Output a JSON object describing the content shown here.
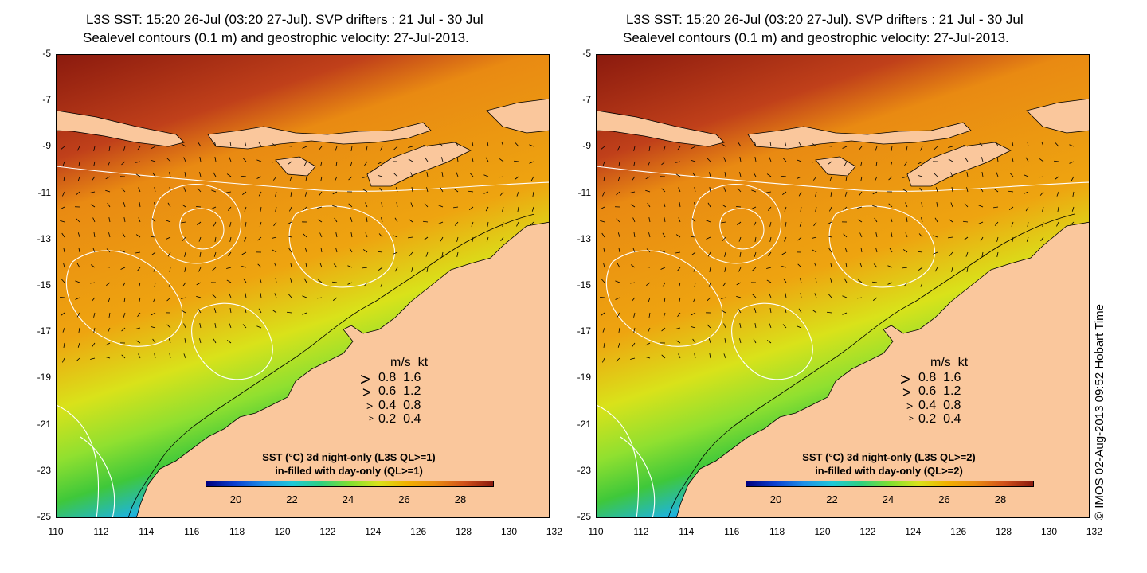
{
  "panels": [
    {
      "title_line1": "L3S SST: 15:20 26-Jul (03:20 27-Jul). SVP drifters : 21 Jul - 30 Jul",
      "title_line2": "Sealevel contours (0.1 m) and geostrophic velocity: 27-Jul-2013.",
      "legend_header": "m/s  kt",
      "legend_rows": [
        "0.8  1.6",
        "0.6  1.2",
        "0.4  0.8",
        "0.2  0.4"
      ],
      "colorbar_caption1": "SST (°C)  3d night-only (L3S QL>=1)",
      "colorbar_caption2": "in-filled with day-only (QL>=1)",
      "colorbar_ticks": [
        "20",
        "22",
        "24",
        "26",
        "28"
      ]
    },
    {
      "title_line1": "L3S SST: 15:20 26-Jul (03:20 27-Jul). SVP drifters : 21 Jul - 30 Jul",
      "title_line2": "Sealevel contours (0.1 m) and geostrophic velocity: 27-Jul-2013.",
      "legend_header": "m/s  kt",
      "legend_rows": [
        "0.8  1.6",
        "0.6  1.2",
        "0.4  0.8",
        "0.2  0.4"
      ],
      "colorbar_caption1": "SST (°C)  3d night-only (L3S QL>=2)",
      "colorbar_caption2": "in-filled with day-only (QL>=2)",
      "colorbar_ticks": [
        "20",
        "22",
        "24",
        "26",
        "28"
      ]
    }
  ],
  "lat_ticks": [
    "-5",
    "-7",
    "-9",
    "-11",
    "-13",
    "-15",
    "-17",
    "-19",
    "-21",
    "-23",
    "-25"
  ],
  "lon_ticks": [
    "110",
    "112",
    "114",
    "116",
    "118",
    "120",
    "122",
    "124",
    "126",
    "128",
    "130",
    "132"
  ],
  "credit": "© IMOS 02-Aug-2013 09:52 Hobart Time",
  "colors": {
    "land": "#fac79c",
    "warm": "#c0401a",
    "hot": "#8b1a0e",
    "orange": "#e98a12",
    "yellow": "#d9e21a",
    "green": "#3fc83a",
    "cyan": "#1fb4d8",
    "blue": "#0a3fd0"
  }
}
